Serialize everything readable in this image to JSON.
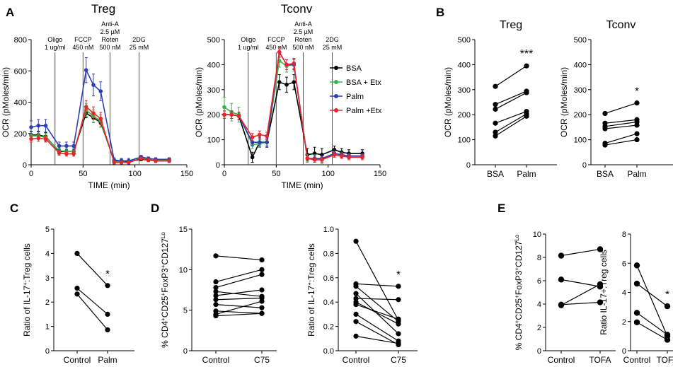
{
  "panel_labels": [
    "A",
    "B",
    "C",
    "D",
    "E"
  ],
  "colors": {
    "BSA": "#000000",
    "BSA + Etx": "#3cb44b",
    "Palm": "#2f3fb3",
    "Palm +Etx": "#e8232a"
  },
  "injections": [
    {
      "lines": [
        "Oligo",
        "1 ug/ml"
      ]
    },
    {
      "lines": [
        "FCCP",
        "450 nM"
      ]
    },
    {
      "lines": [
        "Anti-A",
        "2.5 µM",
        "Roten",
        "500 nM"
      ]
    },
    {
      "lines": [
        "2DG",
        "25 mM"
      ]
    }
  ],
  "superscripts": {
    "lo": "Lo",
    "pos": "+"
  },
  "chart_data": [
    {
      "id": "A-treg",
      "type": "line",
      "title": "Treg",
      "xlabel": "TIME (min)",
      "ylabel": "OCR (pMoles/min)",
      "xlim": [
        0,
        150
      ],
      "ylim": [
        0,
        800
      ],
      "xticks": [
        "0",
        "50",
        "100",
        "150"
      ],
      "yticks": [
        "0",
        "200",
        "400",
        "600",
        "800"
      ],
      "injection_times": [
        23,
        50,
        76,
        104
      ],
      "x": [
        0,
        7,
        14,
        27,
        34,
        41,
        53,
        60,
        67,
        80,
        87,
        94,
        106,
        113,
        120,
        133
      ],
      "series": [
        {
          "name": "BSA",
          "values": [
            190,
            190,
            180,
            85,
            85,
            85,
            330,
            300,
            270,
            25,
            25,
            20,
            35,
            30,
            25,
            25
          ],
          "err": [
            25,
            25,
            25,
            15,
            15,
            15,
            30,
            30,
            30,
            10,
            10,
            10,
            10,
            10,
            10,
            10
          ]
        },
        {
          "name": "BSA + Etx",
          "values": [
            185,
            185,
            175,
            90,
            85,
            85,
            350,
            310,
            280,
            20,
            15,
            15,
            45,
            35,
            30,
            30
          ],
          "err": [
            25,
            25,
            25,
            15,
            15,
            15,
            40,
            40,
            40,
            10,
            10,
            10,
            10,
            10,
            10,
            10
          ]
        },
        {
          "name": "Palm",
          "values": [
            240,
            250,
            250,
            120,
            120,
            120,
            605,
            510,
            470,
            30,
            25,
            25,
            50,
            40,
            35,
            35
          ],
          "err": [
            40,
            40,
            40,
            25,
            25,
            25,
            80,
            70,
            60,
            15,
            15,
            15,
            10,
            10,
            10,
            10
          ]
        },
        {
          "name": "Palm +Etx",
          "values": [
            165,
            170,
            165,
            75,
            70,
            70,
            370,
            330,
            295,
            15,
            15,
            15,
            40,
            30,
            25,
            25
          ],
          "err": [
            20,
            20,
            20,
            15,
            15,
            15,
            40,
            40,
            40,
            10,
            10,
            10,
            10,
            10,
            10,
            10
          ]
        }
      ]
    },
    {
      "id": "A-tconv",
      "type": "line",
      "title": "Tconv",
      "xlabel": "TIME (min)",
      "ylabel": "OCR (pMoles/min)",
      "xlim": [
        0,
        150
      ],
      "ylim": [
        0,
        500
      ],
      "xticks": [
        "0",
        "50",
        "100",
        "150"
      ],
      "yticks": [
        "0",
        "100",
        "200",
        "300",
        "400",
        "500"
      ],
      "injection_times": [
        23,
        50,
        76,
        104
      ],
      "legend": [
        "BSA",
        "BSA + Etx",
        "Palm",
        "Palm +Etx"
      ],
      "x": [
        0,
        7,
        14,
        27,
        34,
        41,
        53,
        60,
        67,
        80,
        87,
        94,
        106,
        113,
        120,
        133
      ],
      "series": [
        {
          "name": "BSA",
          "values": [
            200,
            200,
            195,
            30,
            90,
            90,
            330,
            320,
            330,
            40,
            45,
            40,
            60,
            50,
            45,
            45
          ],
          "err": [
            15,
            15,
            15,
            20,
            20,
            20,
            30,
            30,
            30,
            25,
            25,
            25,
            15,
            15,
            15,
            15
          ]
        },
        {
          "name": "BSA + Etx",
          "values": [
            230,
            210,
            200,
            80,
            85,
            90,
            415,
            395,
            400,
            25,
            25,
            20,
            45,
            40,
            35,
            35
          ],
          "err": [
            40,
            35,
            30,
            15,
            15,
            15,
            25,
            25,
            25,
            15,
            15,
            15,
            10,
            10,
            10,
            10
          ]
        },
        {
          "name": "Palm",
          "values": [
            200,
            200,
            195,
            90,
            90,
            90,
            450,
            400,
            400,
            25,
            25,
            25,
            45,
            40,
            35,
            35
          ],
          "err": [
            15,
            15,
            15,
            15,
            15,
            15,
            20,
            20,
            20,
            10,
            10,
            10,
            10,
            10,
            10,
            10
          ]
        },
        {
          "name": "Palm +Etx",
          "values": [
            200,
            200,
            195,
            110,
            120,
            115,
            450,
            400,
            405,
            25,
            20,
            20,
            40,
            35,
            30,
            30
          ],
          "err": [
            15,
            15,
            15,
            15,
            15,
            15,
            20,
            20,
            20,
            10,
            10,
            10,
            10,
            10,
            10,
            10
          ]
        }
      ]
    },
    {
      "id": "B-treg",
      "type": "paired",
      "title": "Treg",
      "ylabel": "OCR (pMoles/min)",
      "ylim": [
        0,
        500
      ],
      "yticks": [
        "0",
        "100",
        "200",
        "300",
        "400",
        "500"
      ],
      "categories": [
        "BSA",
        "Palm"
      ],
      "significance": "***",
      "pairs": [
        [
          313,
          395
        ],
        [
          241,
          294
        ],
        [
          222,
          288
        ],
        [
          166,
          213
        ],
        [
          130,
          203
        ],
        [
          115,
          194
        ]
      ]
    },
    {
      "id": "B-tconv",
      "type": "paired",
      "title": "Tconv",
      "ylabel": "OCR (pMoles/min)",
      "ylim": [
        0,
        500
      ],
      "yticks": [
        "0",
        "100",
        "200",
        "300",
        "400",
        "500"
      ],
      "categories": [
        "BSA",
        "Palm"
      ],
      "significance": "*",
      "pairs": [
        [
          205,
          247
        ],
        [
          166,
          180
        ],
        [
          153,
          171
        ],
        [
          144,
          158
        ],
        [
          86,
          124
        ],
        [
          79,
          100
        ]
      ]
    },
    {
      "id": "C",
      "type": "paired",
      "ylabel": "Ratio of IL-17 :Treg cells",
      "ylim": [
        0,
        5
      ],
      "yticks": [
        "0",
        "1",
        "2",
        "3",
        "4",
        "5"
      ],
      "categories": [
        "Control",
        "Palm"
      ],
      "significance": "*",
      "pairs": [
        [
          4.0,
          2.68
        ],
        [
          2.57,
          1.5
        ],
        [
          2.33,
          0.86
        ]
      ]
    },
    {
      "id": "D-left",
      "type": "paired",
      "ylabel": "% CD4 CD25 FoxP3 CD127",
      "ylim": [
        0,
        15
      ],
      "yticks": [
        "0",
        "5",
        "10",
        "15"
      ],
      "categories": [
        "Control",
        "C75"
      ],
      "significance": "",
      "pairs": [
        [
          11.7,
          11.2
        ],
        [
          8.5,
          10.0
        ],
        [
          7.8,
          9.4
        ],
        [
          7.3,
          6.7
        ],
        [
          6.8,
          7.5
        ],
        [
          6.3,
          6.5
        ],
        [
          5.7,
          5.3
        ],
        [
          4.5,
          6.1
        ],
        [
          4.3,
          4.6
        ],
        [
          4.9,
          4.6
        ]
      ]
    },
    {
      "id": "D-right",
      "type": "paired",
      "ylabel": "Ratio of IL-17 :Treg cells",
      "ylim": [
        0,
        1.0
      ],
      "yticks": [
        "0.0",
        "0.2",
        "0.4",
        "0.6",
        "0.8",
        "1.0"
      ],
      "categories": [
        "Control",
        "C75"
      ],
      "significance": "*",
      "pairs": [
        [
          0.9,
          0.25
        ],
        [
          0.55,
          0.53
        ],
        [
          0.53,
          0.24
        ],
        [
          0.47,
          0.14
        ],
        [
          0.43,
          0.42
        ],
        [
          0.4,
          0.22
        ],
        [
          0.38,
          0.26
        ],
        [
          0.3,
          0.08
        ],
        [
          0.24,
          0.05
        ],
        [
          0.12,
          0.06
        ]
      ]
    },
    {
      "id": "E-left",
      "type": "paired",
      "ylabel": "% CD4 CD25 FoxP3 CD127",
      "ylim": [
        0,
        10
      ],
      "yticks": [
        "0",
        "2",
        "4",
        "6",
        "8",
        "10"
      ],
      "categories": [
        "Control",
        "TOFA"
      ],
      "significance": "",
      "pairs": [
        [
          8.15,
          8.7
        ],
        [
          6.1,
          5.5
        ],
        [
          3.9,
          5.7
        ],
        [
          3.95,
          4.15
        ]
      ]
    },
    {
      "id": "E-right",
      "type": "paired",
      "ylabel": "Ratio IL-17+:Treg cells",
      "ylim": [
        0,
        8
      ],
      "yticks": [
        "0",
        "2",
        "4",
        "6",
        "8"
      ],
      "categories": [
        "Control",
        "TOFA"
      ],
      "significance": "*",
      "pairs": [
        [
          5.85,
          1.0
        ],
        [
          4.6,
          3.05
        ],
        [
          2.6,
          1.1
        ],
        [
          1.95,
          0.75
        ]
      ]
    }
  ]
}
